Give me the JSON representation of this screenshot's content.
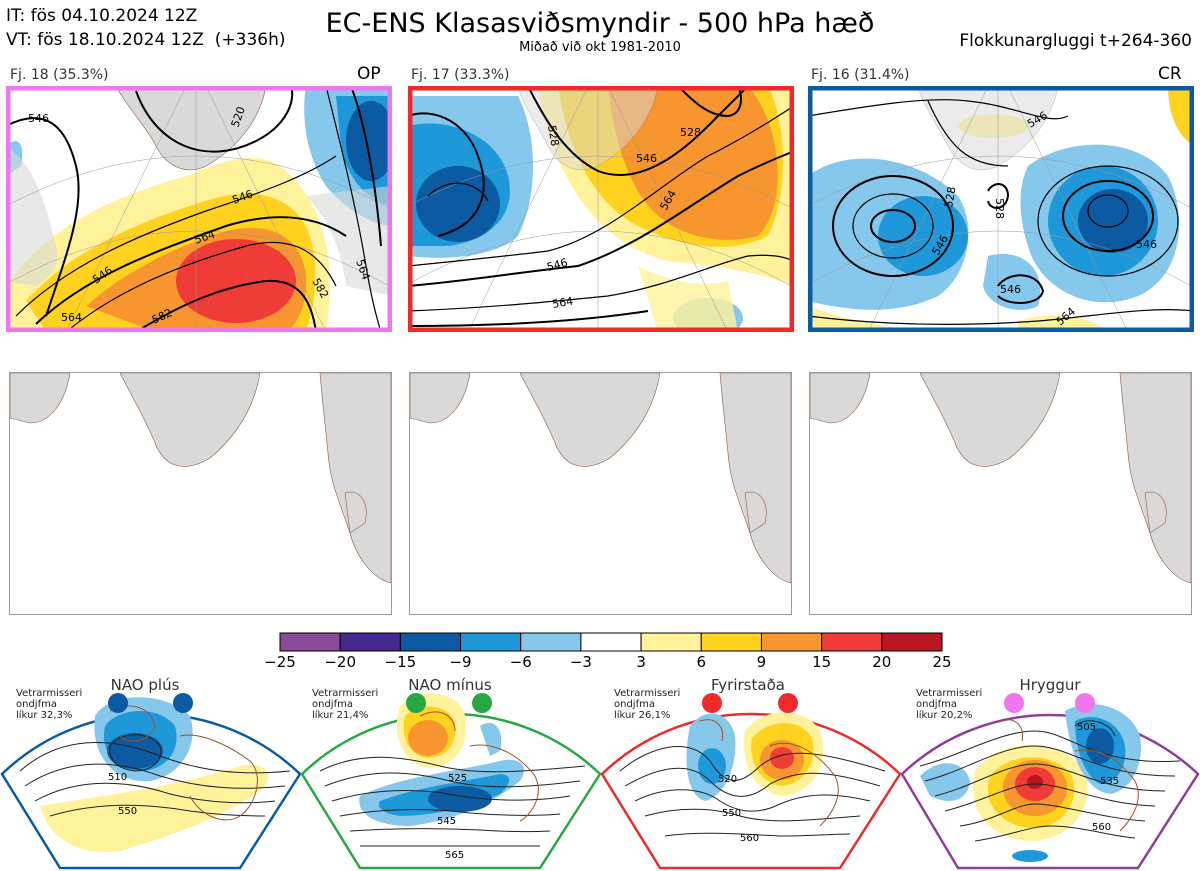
{
  "header": {
    "it_line": "IT: fös 04.10.2024 12Z",
    "vt_line": "VT: fös 18.10.2024 12Z  (+336h)",
    "title": "EC-ENS Klasasviðsmyndir - 500 hPa hæð",
    "subtitle": "Miðað við okt 1981-2010",
    "window": "Flokkunargluggi t+264-360"
  },
  "panels": [
    {
      "count_label": "Fj. 18 (35.3%)",
      "tag": "OP",
      "border_color": "#ee77ee",
      "contour_labels": [
        "546",
        "520",
        "546",
        "564",
        "546",
        "564",
        "582",
        "582",
        "564"
      ]
    },
    {
      "count_label": "Fj. 17 (33.3%)",
      "tag": "",
      "border_color": "#ee2a2a",
      "contour_labels": [
        "528",
        "546",
        "564",
        "546",
        "564",
        "528"
      ]
    },
    {
      "count_label": "Fj. 16 (31.4%)",
      "tag": "CR",
      "border_color": "#0b5aa2",
      "contour_labels": [
        "546",
        "528",
        "546",
        "528",
        "546",
        "546",
        "564"
      ]
    }
  ],
  "colorbar": {
    "ticks": [
      "−25",
      "−20",
      "−15",
      "−9",
      "−6",
      "−3",
      "3",
      "6",
      "9",
      "15",
      "20",
      "25"
    ],
    "colors": [
      "#8a4a9a",
      "#47288f",
      "#0b5aa2",
      "#1e98d8",
      "#86c8ec",
      "#ffffff",
      "#fff29a",
      "#ffd21f",
      "#f7952e",
      "#ef3c36",
      "#b81620"
    ]
  },
  "regimes": [
    {
      "name": "NAO plús",
      "note": [
        "Vetrarmisseri",
        "ondjfma",
        "líkur 32,3%"
      ],
      "color": "#0b5aa2",
      "labels": [
        "510",
        "550"
      ]
    },
    {
      "name": "NAO mínus",
      "note": [
        "Vetrarmisseri",
        "ondjfma",
        "líkur 21,4%"
      ],
      "color": "#27a845",
      "labels": [
        "525",
        "545",
        "565"
      ]
    },
    {
      "name": "Fyrirstaða",
      "note": [
        "Vetrarmisseri",
        "ondjfma",
        "líkur 26,1%"
      ],
      "color": "#ee2a2a",
      "labels": [
        "520",
        "550",
        "560"
      ]
    },
    {
      "name": "Hryggur",
      "note": [
        "Vetrarmisseri",
        "ondjfma",
        "líkur 20,2%"
      ],
      "color": "#ee77ee",
      "labels": [
        "505",
        "535",
        "560"
      ]
    }
  ]
}
